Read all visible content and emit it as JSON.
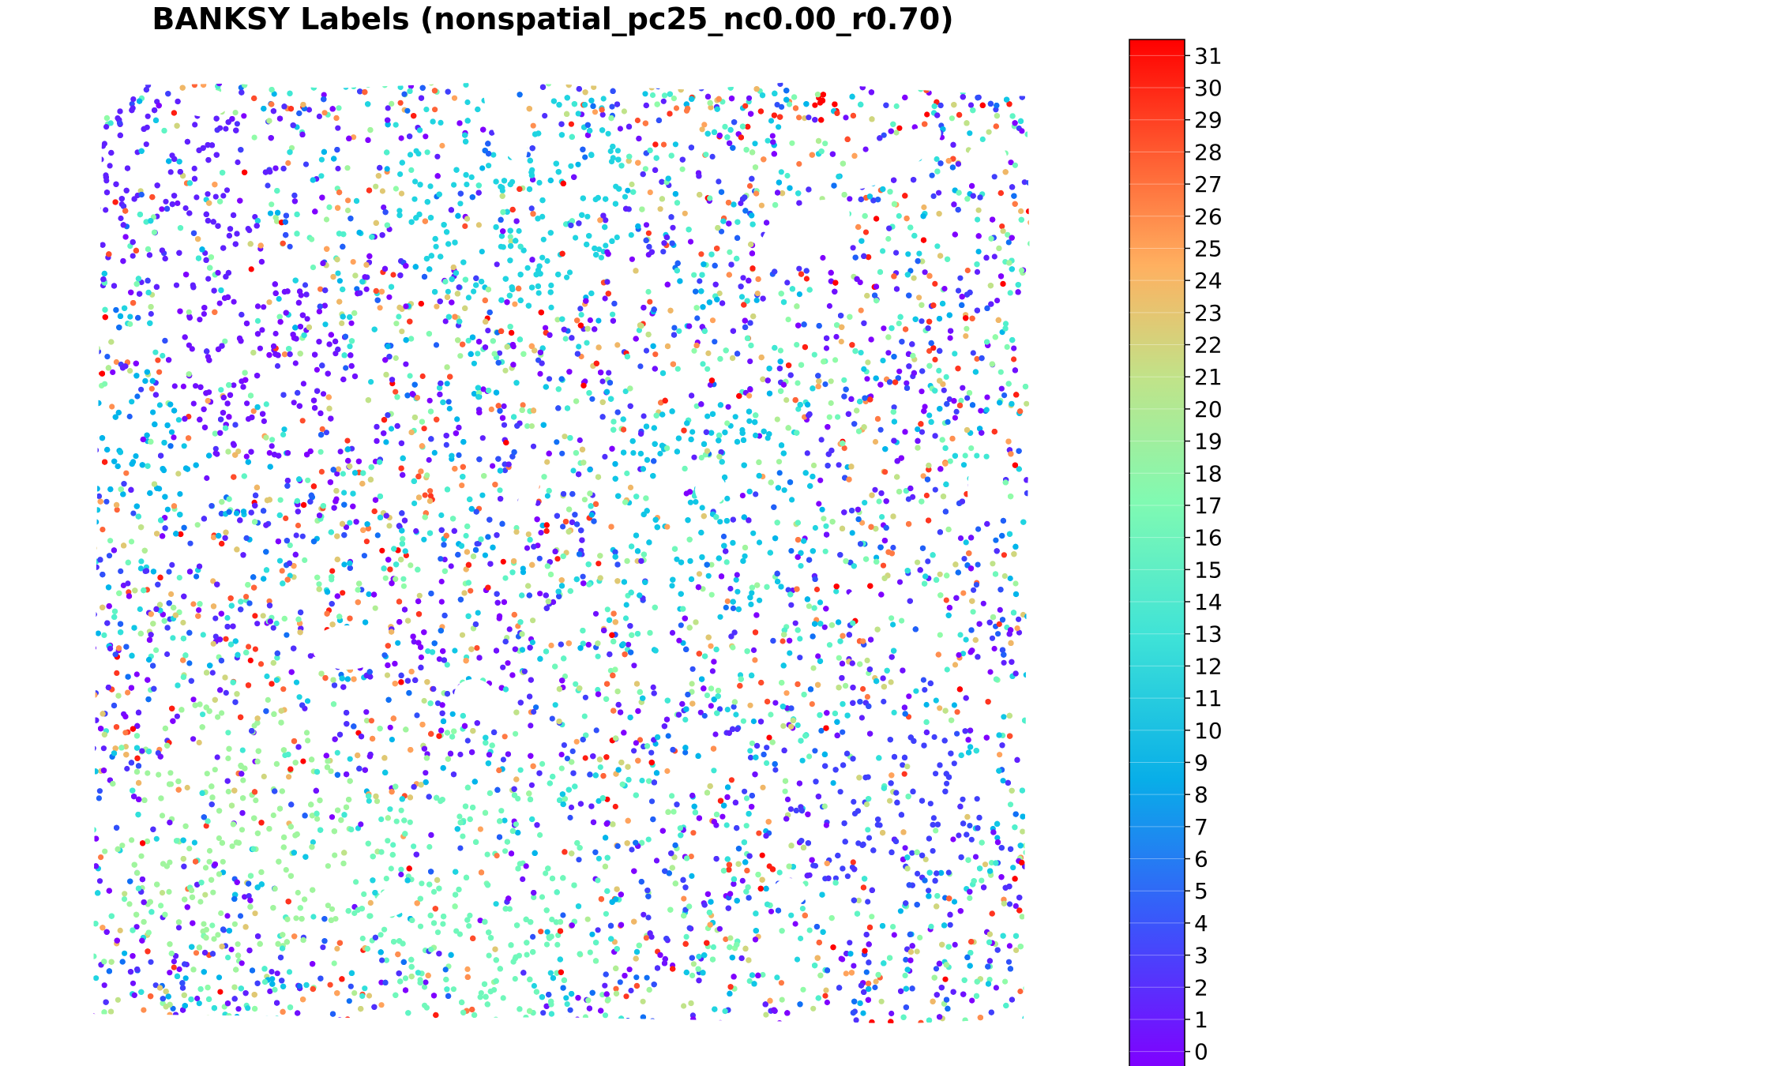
{
  "chart_data": {
    "type": "scatter",
    "title": "BANKSY Labels (nonspatial_pc25_nc0.00_r0.70)",
    "xlabel": "",
    "ylabel": "",
    "axes_visible": false,
    "grid": false,
    "point_count_estimate": 60000,
    "color_by": "cluster label",
    "colormap": "rainbow",
    "colorbar": {
      "position": "right",
      "range": [
        0,
        31
      ],
      "ticks": [
        "0",
        "1",
        "2",
        "3",
        "4",
        "5",
        "6",
        "7",
        "8",
        "9",
        "10",
        "11",
        "12",
        "13",
        "14",
        "15",
        "16",
        "17",
        "18",
        "19",
        "20",
        "21",
        "22",
        "23",
        "24",
        "25",
        "26",
        "27",
        "28",
        "29",
        "30",
        "31"
      ]
    },
    "clusters": [
      {
        "label": 0,
        "color": "#8000ff"
      },
      {
        "label": 1,
        "color": "#7010ff"
      },
      {
        "label": 2,
        "color": "#6020ff"
      },
      {
        "label": 3,
        "color": "#5030fe"
      },
      {
        "label": 4,
        "color": "#4040fd"
      },
      {
        "label": 5,
        "color": "#3050fb"
      },
      {
        "label": 6,
        "color": "#2060f9"
      },
      {
        "label": 7,
        "color": "#1070f6"
      },
      {
        "label": 8,
        "color": "#00b5eb"
      },
      {
        "label": 9,
        "color": "#10c6e6"
      },
      {
        "label": 10,
        "color": "#20d4e1"
      },
      {
        "label": 11,
        "color": "#30e0db"
      },
      {
        "label": 12,
        "color": "#40e8d4"
      },
      {
        "label": 13,
        "color": "#50f0cc"
      },
      {
        "label": 14,
        "color": "#60f5c4"
      },
      {
        "label": 15,
        "color": "#70f8bb"
      },
      {
        "label": 16,
        "color": "#80fab2"
      },
      {
        "label": 17,
        "color": "#90fca8"
      },
      {
        "label": 18,
        "color": "#a0f59e"
      },
      {
        "label": 19,
        "color": "#b0ee94"
      },
      {
        "label": 20,
        "color": "#c0e389"
      },
      {
        "label": 21,
        "color": "#d0d67e"
      },
      {
        "label": 22,
        "color": "#e0c873"
      },
      {
        "label": 23,
        "color": "#f0b767"
      },
      {
        "label": 24,
        "color": "#ffa35c"
      },
      {
        "label": 25,
        "color": "#ff8f50"
      },
      {
        "label": 26,
        "color": "#ff7a44"
      },
      {
        "label": 27,
        "color": "#ff6438"
      },
      {
        "label": 28,
        "color": "#ff4d2c"
      },
      {
        "label": 29,
        "color": "#ff3520"
      },
      {
        "label": 30,
        "color": "#ff1e12"
      },
      {
        "label": 31,
        "color": "#ff0000"
      }
    ]
  }
}
